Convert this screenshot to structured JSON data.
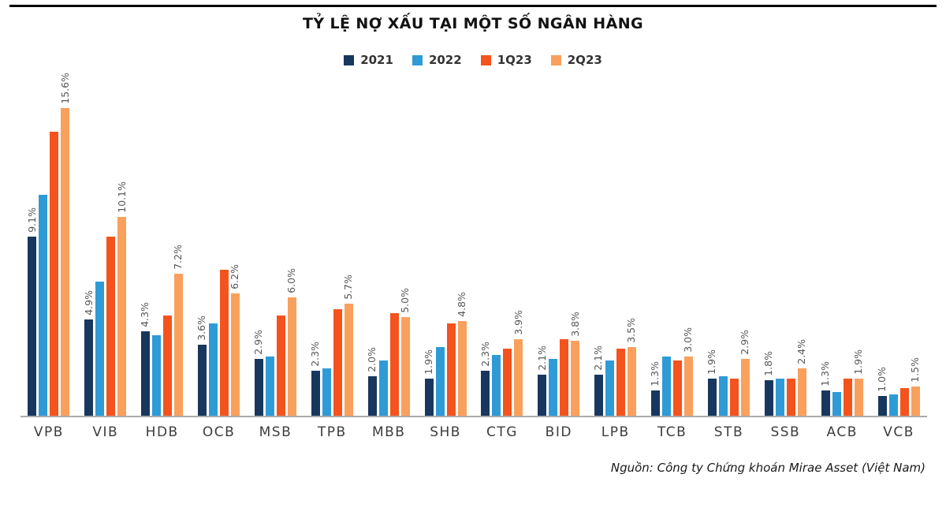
{
  "page": {
    "title": "TỶ LỆ NỢ XẤU TẠI MỘT SỐ NGÂN HÀNG",
    "source_note": "Nguồn: Công ty Chứng khoán Mirae Asset (Việt Nam)"
  },
  "chart_data": {
    "type": "bar",
    "title": "TỶ LỆ NỢ XẤU TẠI MỘT SỐ NGÂN HÀNG",
    "categories": [
      "VPB",
      "VIB",
      "HDB",
      "OCB",
      "MSB",
      "TPB",
      "MBB",
      "SHB",
      "CTG",
      "BID",
      "LPB",
      "TCB",
      "STB",
      "SSB",
      "ACB",
      "VCB"
    ],
    "series": [
      {
        "name": "2021",
        "color": "#17375e",
        "labeled": true,
        "values": [
          9.1,
          4.9,
          4.3,
          3.6,
          2.9,
          2.3,
          2.0,
          1.9,
          2.3,
          2.1,
          2.1,
          1.3,
          1.9,
          1.8,
          1.3,
          1.0
        ]
      },
      {
        "name": "2022",
        "color": "#2e9bd6",
        "labeled": false,
        "values": [
          11.2,
          6.8,
          4.1,
          4.7,
          3.0,
          2.4,
          2.8,
          3.5,
          3.1,
          2.9,
          2.8,
          3.0,
          2.0,
          1.9,
          1.2,
          1.1
        ]
      },
      {
        "name": "1Q23",
        "color": "#f4531d",
        "labeled": false,
        "values": [
          14.4,
          9.1,
          5.1,
          7.4,
          5.1,
          5.4,
          5.2,
          4.7,
          3.4,
          3.9,
          3.4,
          2.8,
          1.9,
          1.9,
          1.9,
          1.4
        ]
      },
      {
        "name": "2Q23",
        "color": "#f9a05d",
        "labeled": true,
        "values": [
          15.6,
          10.1,
          7.2,
          6.2,
          6.0,
          5.7,
          5.0,
          4.8,
          3.9,
          3.8,
          3.5,
          3.0,
          2.9,
          2.4,
          1.9,
          1.5
        ]
      }
    ],
    "ylim": [
      0,
      16
    ],
    "value_suffix": "%",
    "value_label_rotation": -90,
    "value_labels_on": [
      "2021",
      "2Q23"
    ],
    "xlabel": "",
    "ylabel": "",
    "grid": false,
    "legend_position": "top-center"
  }
}
